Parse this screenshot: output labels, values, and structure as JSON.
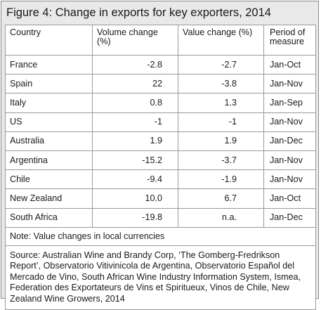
{
  "title": "Figure 4: Change in exports for key exporters, 2014",
  "headers": {
    "country": "Country",
    "volume": "Volume change (%)",
    "value": "Value change (%)",
    "period": "Period of measure"
  },
  "rows": [
    {
      "country": "France",
      "volume": "-2.8",
      "value": "-2.7",
      "period": "Jan-Oct"
    },
    {
      "country": "Spain",
      "volume": "22",
      "value": "-3.8",
      "period": "Jan-Nov"
    },
    {
      "country": "Italy",
      "volume": "0.8",
      "value": "1.3",
      "period": "Jan-Sep"
    },
    {
      "country": "US",
      "volume": "-1",
      "value": "-1",
      "period": "Jan-Nov"
    },
    {
      "country": "Australia",
      "volume": "1.9",
      "value": "1.9",
      "period": "Jan-Dec"
    },
    {
      "country": "Argentina",
      "volume": "-15.2",
      "value": "-3.7",
      "period": "Jan-Nov"
    },
    {
      "country": "Chile",
      "volume": "-9.4",
      "value": "-1.9",
      "period": "Jan-Nov"
    },
    {
      "country": "New Zealand",
      "volume": "10.0",
      "value": "6.7",
      "period": "Jan-Oct"
    },
    {
      "country": "South Africa",
      "volume": "-19.8",
      "value": "n.a.",
      "period": "Jan-Dec"
    }
  ],
  "note": "Note: Value changes in local currencies",
  "source": "Source: Australian Wine and Brandy Corp, ‘The Gomberg-Fredrikson Report’, Observatorio Vitivinicola de Argentina, Observatorio Español del Mercado de Vino, South African Wine Industry Information System, Ismea, Federation des Exportateurs de Vins et Spiritueux, Vinos de Chile, New Zealand Wine Growers, 2014"
}
